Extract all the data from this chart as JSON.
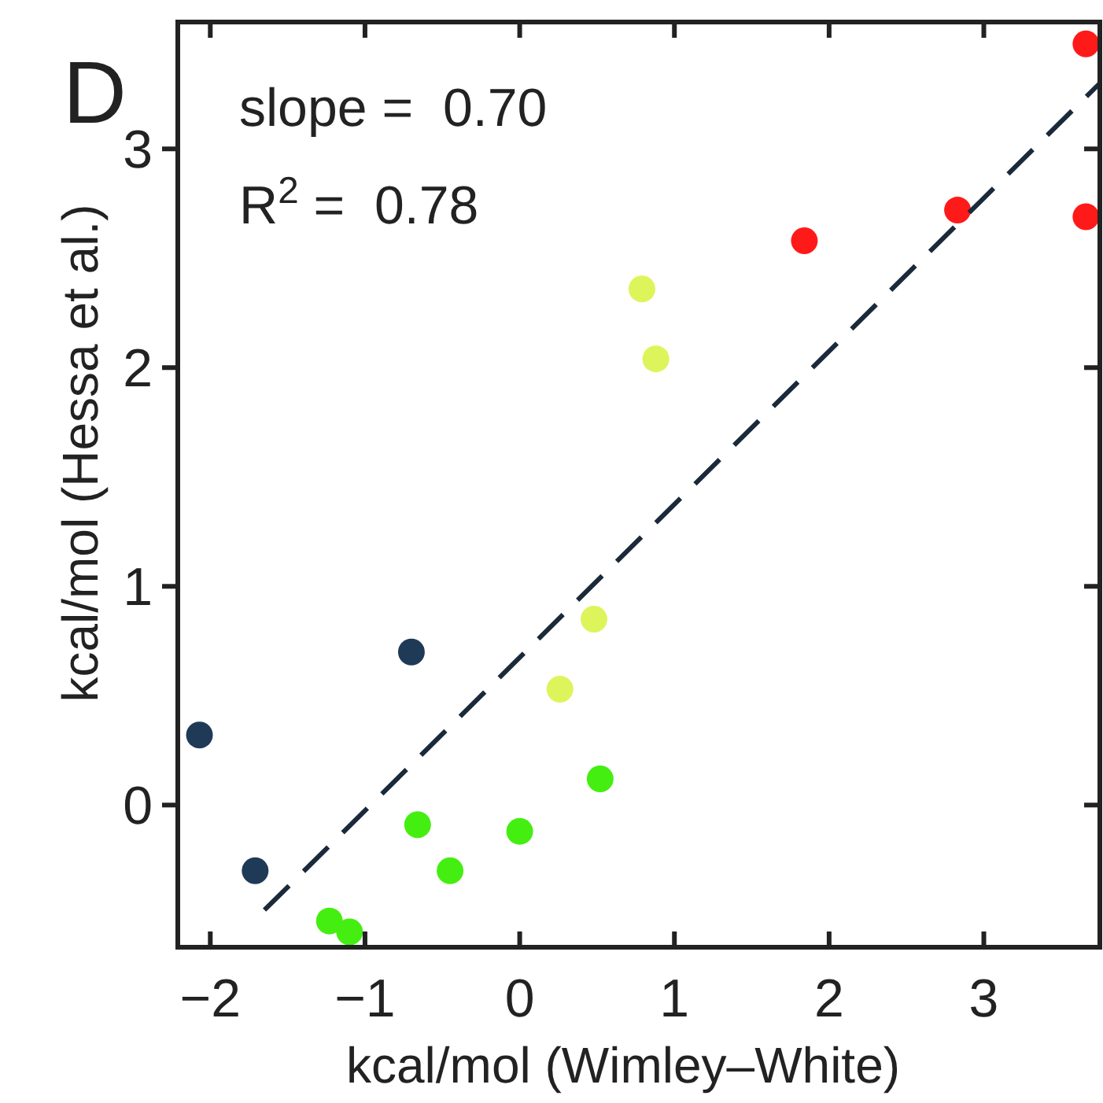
{
  "chart_data": {
    "type": "scatter",
    "xlabel": "kcal/mol (Wimley–White)",
    "ylabel": "kcal/mol (Hessa et al.)",
    "annotations": [
      "D",
      "slope =  0.70",
      "R$^{2}$ =  0.78"
    ],
    "xlim": [
      -2.21,
      3.75
    ],
    "ylim": [
      -0.65,
      3.58
    ],
    "xticks": [
      -2,
      -1,
      0,
      1,
      2,
      3
    ],
    "yticks": [
      0,
      1,
      2,
      3
    ],
    "grid": false,
    "marker": "circle",
    "series": [
      {
        "color": "#1f3a56",
        "x": [
          -2.07,
          -1.71,
          -0.7
        ],
        "values": [
          0.32,
          -0.3,
          0.7
        ]
      },
      {
        "color": "#44ee11",
        "x": [
          -1.23,
          -1.1,
          -0.66,
          -0.45,
          0.0,
          0.52
        ],
        "values": [
          -0.53,
          -0.58,
          -0.09,
          -0.3,
          -0.12,
          0.12
        ]
      },
      {
        "color": "#ddf55a",
        "x": [
          0.26,
          0.48,
          0.79,
          0.88
        ],
        "values": [
          0.53,
          0.85,
          2.36,
          2.04
        ]
      },
      {
        "color": "#ff1a1a",
        "x": [
          1.84,
          2.83,
          3.66,
          3.66
        ],
        "values": [
          2.58,
          2.72,
          2.69,
          3.48
        ]
      },
      {
        "type": "line",
        "color": "#1a2a3a",
        "line_style": "dashed",
        "marker": "none",
        "x": [
          -1.65,
          3.75
        ],
        "values": [
          -0.48,
          3.3
        ]
      }
    ]
  }
}
